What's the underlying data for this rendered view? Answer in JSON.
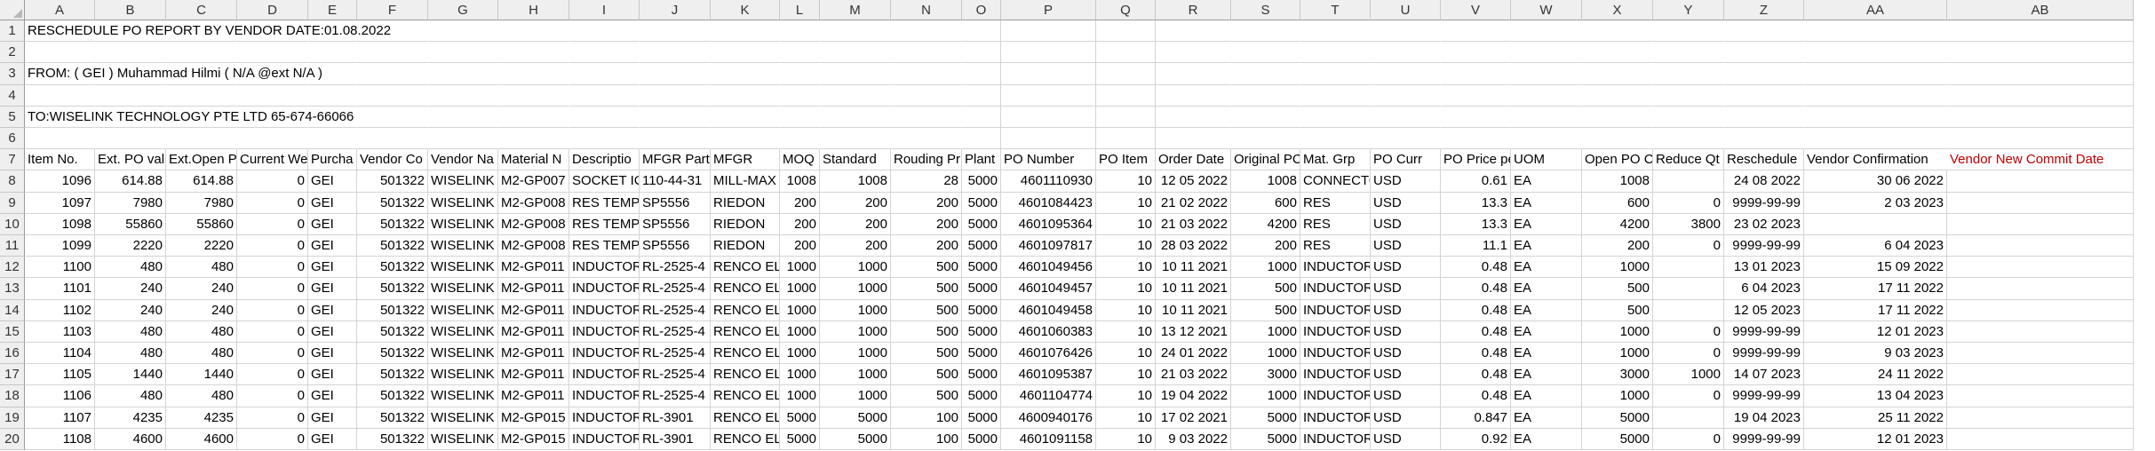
{
  "columns": [
    "A",
    "B",
    "C",
    "D",
    "E",
    "F",
    "G",
    "H",
    "I",
    "J",
    "K",
    "L",
    "M",
    "N",
    "O",
    "P",
    "Q",
    "R",
    "S",
    "T",
    "U",
    "V",
    "W",
    "X",
    "Y",
    "Z",
    "AA",
    "AB"
  ],
  "numeric_columns": [
    "A",
    "B",
    "C",
    "D",
    "F",
    "L",
    "M",
    "N",
    "O",
    "P",
    "Q",
    "R",
    "S",
    "V",
    "X",
    "Y",
    "Z",
    "AA"
  ],
  "rows": [
    {
      "num": "1",
      "cells": {
        "A": "RESCHEDULE PO REPORT BY VENDOR        DATE:01.08.2022"
      }
    },
    {
      "num": "2",
      "cells": {}
    },
    {
      "num": "3",
      "cells": {
        "A": "FROM: ( GEI ) Muhammad Hilmi ( N/A @ext N/A )"
      }
    },
    {
      "num": "4",
      "cells": {}
    },
    {
      "num": "5",
      "cells": {
        "A": "TO:WISELINK TECHNOLOGY PTE LTD 65-674-66066"
      }
    },
    {
      "num": "6",
      "cells": {}
    },
    {
      "num": "7",
      "cells": {
        "A": "Item No.",
        "B": "Ext. PO val",
        "C": "Ext.Open P",
        "D": "Current We",
        "E": "Purcha",
        "F": "Vendor Co",
        "G": "Vendor Na",
        "H": "Material N",
        "I": "Descriptio",
        "J": "MFGR Part",
        "K": "MFGR",
        "L": "MOQ",
        "M": "Standard",
        "N": "Rouding Pr",
        "O": "Plant",
        "P": "PO Number",
        "Q": "PO Item",
        "R": "Order Date",
        "S": "Original PC",
        "T": "Mat. Grp",
        "U": "PO Curr",
        "V": "PO Price pe",
        "W": "UOM",
        "X": "Open PO C",
        "Y": "Reduce Qt",
        "Z": "Reschedule",
        "AA": "Vendor Confirmation",
        "AB": "Vendor New Commit Date"
      }
    },
    {
      "num": "8",
      "cells": {
        "A": "1096",
        "B": "614.88",
        "C": "614.88",
        "D": "0",
        "E": "GEI",
        "F": "501322",
        "G": "WISELINK",
        "H": "M2-GP007",
        "I": "SOCKET IC",
        "J": "110-44-31",
        "K": "MILL-MAX",
        "L": "1008",
        "M": "1008",
        "N": "28",
        "O": "5000",
        "P": "4601110930",
        "Q": "10",
        "R": "12 05 2022",
        "S": "1008",
        "T": "CONNECTO",
        "U": "USD",
        "V": "0.61",
        "W": "EA",
        "X": "1008",
        "Y": "",
        "Z": "24 08 2022",
        "AA": "30 06 2022",
        "AB": ""
      }
    },
    {
      "num": "9",
      "cells": {
        "A": "1097",
        "B": "7980",
        "C": "7980",
        "D": "0",
        "E": "GEI",
        "F": "501322",
        "G": "WISELINK",
        "H": "M2-GP008",
        "I": "RES TEMP",
        "J": "SP5556",
        "K": "RIEDON",
        "L": "200",
        "M": "200",
        "N": "200",
        "O": "5000",
        "P": "4601084423",
        "Q": "10",
        "R": "21 02 2022",
        "S": "600",
        "T": "RES",
        "U": "USD",
        "V": "13.3",
        "W": "EA",
        "X": "600",
        "Y": "0",
        "Z": "9999-99-99",
        "AA": "2 03 2023",
        "AB": ""
      }
    },
    {
      "num": "10",
      "cells": {
        "A": "1098",
        "B": "55860",
        "C": "55860",
        "D": "0",
        "E": "GEI",
        "F": "501322",
        "G": "WISELINK",
        "H": "M2-GP008",
        "I": "RES TEMP",
        "J": "SP5556",
        "K": "RIEDON",
        "L": "200",
        "M": "200",
        "N": "200",
        "O": "5000",
        "P": "4601095364",
        "Q": "10",
        "R": "21 03 2022",
        "S": "4200",
        "T": "RES",
        "U": "USD",
        "V": "13.3",
        "W": "EA",
        "X": "4200",
        "Y": "3800",
        "Z": "23 02 2023",
        "AA": "",
        "AB": ""
      }
    },
    {
      "num": "11",
      "cells": {
        "A": "1099",
        "B": "2220",
        "C": "2220",
        "D": "0",
        "E": "GEI",
        "F": "501322",
        "G": "WISELINK",
        "H": "M2-GP008",
        "I": "RES TEMP",
        "J": "SP5556",
        "K": "RIEDON",
        "L": "200",
        "M": "200",
        "N": "200",
        "O": "5000",
        "P": "4601097817",
        "Q": "10",
        "R": "28 03 2022",
        "S": "200",
        "T": "RES",
        "U": "USD",
        "V": "11.1",
        "W": "EA",
        "X": "200",
        "Y": "0",
        "Z": "9999-99-99",
        "AA": "6 04 2023",
        "AB": ""
      }
    },
    {
      "num": "12",
      "cells": {
        "A": "1100",
        "B": "480",
        "C": "480",
        "D": "0",
        "E": "GEI",
        "F": "501322",
        "G": "WISELINK",
        "H": "M2-GP011",
        "I": "INDUCTOR",
        "J": "RL-2525-4",
        "K": "RENCO EL",
        "L": "1000",
        "M": "1000",
        "N": "500",
        "O": "5000",
        "P": "4601049456",
        "Q": "10",
        "R": "10 11 2021",
        "S": "1000",
        "T": "INDUCTOR",
        "U": "USD",
        "V": "0.48",
        "W": "EA",
        "X": "1000",
        "Y": "",
        "Z": "13 01 2023",
        "AA": "15 09 2022",
        "AB": ""
      }
    },
    {
      "num": "13",
      "cells": {
        "A": "1101",
        "B": "240",
        "C": "240",
        "D": "0",
        "E": "GEI",
        "F": "501322",
        "G": "WISELINK",
        "H": "M2-GP011",
        "I": "INDUCTOR",
        "J": "RL-2525-4",
        "K": "RENCO EL",
        "L": "1000",
        "M": "1000",
        "N": "500",
        "O": "5000",
        "P": "4601049457",
        "Q": "10",
        "R": "10 11 2021",
        "S": "500",
        "T": "INDUCTOR",
        "U": "USD",
        "V": "0.48",
        "W": "EA",
        "X": "500",
        "Y": "",
        "Z": "6 04 2023",
        "AA": "17 11 2022",
        "AB": ""
      }
    },
    {
      "num": "14",
      "cells": {
        "A": "1102",
        "B": "240",
        "C": "240",
        "D": "0",
        "E": "GEI",
        "F": "501322",
        "G": "WISELINK",
        "H": "M2-GP011",
        "I": "INDUCTOR",
        "J": "RL-2525-4",
        "K": "RENCO EL",
        "L": "1000",
        "M": "1000",
        "N": "500",
        "O": "5000",
        "P": "4601049458",
        "Q": "10",
        "R": "10 11 2021",
        "S": "500",
        "T": "INDUCTOR",
        "U": "USD",
        "V": "0.48",
        "W": "EA",
        "X": "500",
        "Y": "",
        "Z": "12 05 2023",
        "AA": "17 11 2022",
        "AB": ""
      }
    },
    {
      "num": "15",
      "cells": {
        "A": "1103",
        "B": "480",
        "C": "480",
        "D": "0",
        "E": "GEI",
        "F": "501322",
        "G": "WISELINK",
        "H": "M2-GP011",
        "I": "INDUCTOR",
        "J": "RL-2525-4",
        "K": "RENCO EL",
        "L": "1000",
        "M": "1000",
        "N": "500",
        "O": "5000",
        "P": "4601060383",
        "Q": "10",
        "R": "13 12 2021",
        "S": "1000",
        "T": "INDUCTOR",
        "U": "USD",
        "V": "0.48",
        "W": "EA",
        "X": "1000",
        "Y": "0",
        "Z": "9999-99-99",
        "AA": "12 01 2023",
        "AB": ""
      }
    },
    {
      "num": "16",
      "cells": {
        "A": "1104",
        "B": "480",
        "C": "480",
        "D": "0",
        "E": "GEI",
        "F": "501322",
        "G": "WISELINK",
        "H": "M2-GP011",
        "I": "INDUCTOR",
        "J": "RL-2525-4",
        "K": "RENCO EL",
        "L": "1000",
        "M": "1000",
        "N": "500",
        "O": "5000",
        "P": "4601076426",
        "Q": "10",
        "R": "24 01 2022",
        "S": "1000",
        "T": "INDUCTOR",
        "U": "USD",
        "V": "0.48",
        "W": "EA",
        "X": "1000",
        "Y": "0",
        "Z": "9999-99-99",
        "AA": "9 03 2023",
        "AB": ""
      }
    },
    {
      "num": "17",
      "cells": {
        "A": "1105",
        "B": "1440",
        "C": "1440",
        "D": "0",
        "E": "GEI",
        "F": "501322",
        "G": "WISELINK",
        "H": "M2-GP011",
        "I": "INDUCTOR",
        "J": "RL-2525-4",
        "K": "RENCO EL",
        "L": "1000",
        "M": "1000",
        "N": "500",
        "O": "5000",
        "P": "4601095387",
        "Q": "10",
        "R": "21 03 2022",
        "S": "3000",
        "T": "INDUCTOR",
        "U": "USD",
        "V": "0.48",
        "W": "EA",
        "X": "3000",
        "Y": "1000",
        "Z": "14 07 2023",
        "AA": "24 11 2022",
        "AB": ""
      }
    },
    {
      "num": "18",
      "cells": {
        "A": "1106",
        "B": "480",
        "C": "480",
        "D": "0",
        "E": "GEI",
        "F": "501322",
        "G": "WISELINK",
        "H": "M2-GP011",
        "I": "INDUCTOR",
        "J": "RL-2525-4",
        "K": "RENCO EL",
        "L": "1000",
        "M": "1000",
        "N": "500",
        "O": "5000",
        "P": "4601104774",
        "Q": "10",
        "R": "19 04 2022",
        "S": "1000",
        "T": "INDUCTOR",
        "U": "USD",
        "V": "0.48",
        "W": "EA",
        "X": "1000",
        "Y": "0",
        "Z": "9999-99-99",
        "AA": "13 04 2023",
        "AB": ""
      }
    },
    {
      "num": "19",
      "cells": {
        "A": "1107",
        "B": "4235",
        "C": "4235",
        "D": "0",
        "E": "GEI",
        "F": "501322",
        "G": "WISELINK",
        "H": "M2-GP015",
        "I": "INDUCTOR",
        "J": "RL-3901",
        "K": "RENCO EL",
        "L": "5000",
        "M": "5000",
        "N": "100",
        "O": "5000",
        "P": "4600940176",
        "Q": "10",
        "R": "17 02 2021",
        "S": "5000",
        "T": "INDUCTOR",
        "U": "USD",
        "V": "0.847",
        "W": "EA",
        "X": "5000",
        "Y": "",
        "Z": "19 04 2023",
        "AA": "25 11 2022",
        "AB": ""
      }
    },
    {
      "num": "20",
      "cells": {
        "A": "1108",
        "B": "4600",
        "C": "4600",
        "D": "0",
        "E": "GEI",
        "F": "501322",
        "G": "WISELINK",
        "H": "M2-GP015",
        "I": "INDUCTOR",
        "J": "RL-3901",
        "K": "RENCO EL",
        "L": "5000",
        "M": "5000",
        "N": "100",
        "O": "5000",
        "P": "4601091158",
        "Q": "10",
        "R": "9 03 2022",
        "S": "5000",
        "T": "INDUCTOR",
        "U": "USD",
        "V": "0.92",
        "W": "EA",
        "X": "5000",
        "Y": "0",
        "Z": "9999-99-99",
        "AA": "12 01 2023",
        "AB": ""
      }
    }
  ],
  "colors": {
    "header_bg": "#efefef",
    "gridline": "#d4d4d4",
    "vendor_new_commit": "#c00000"
  }
}
